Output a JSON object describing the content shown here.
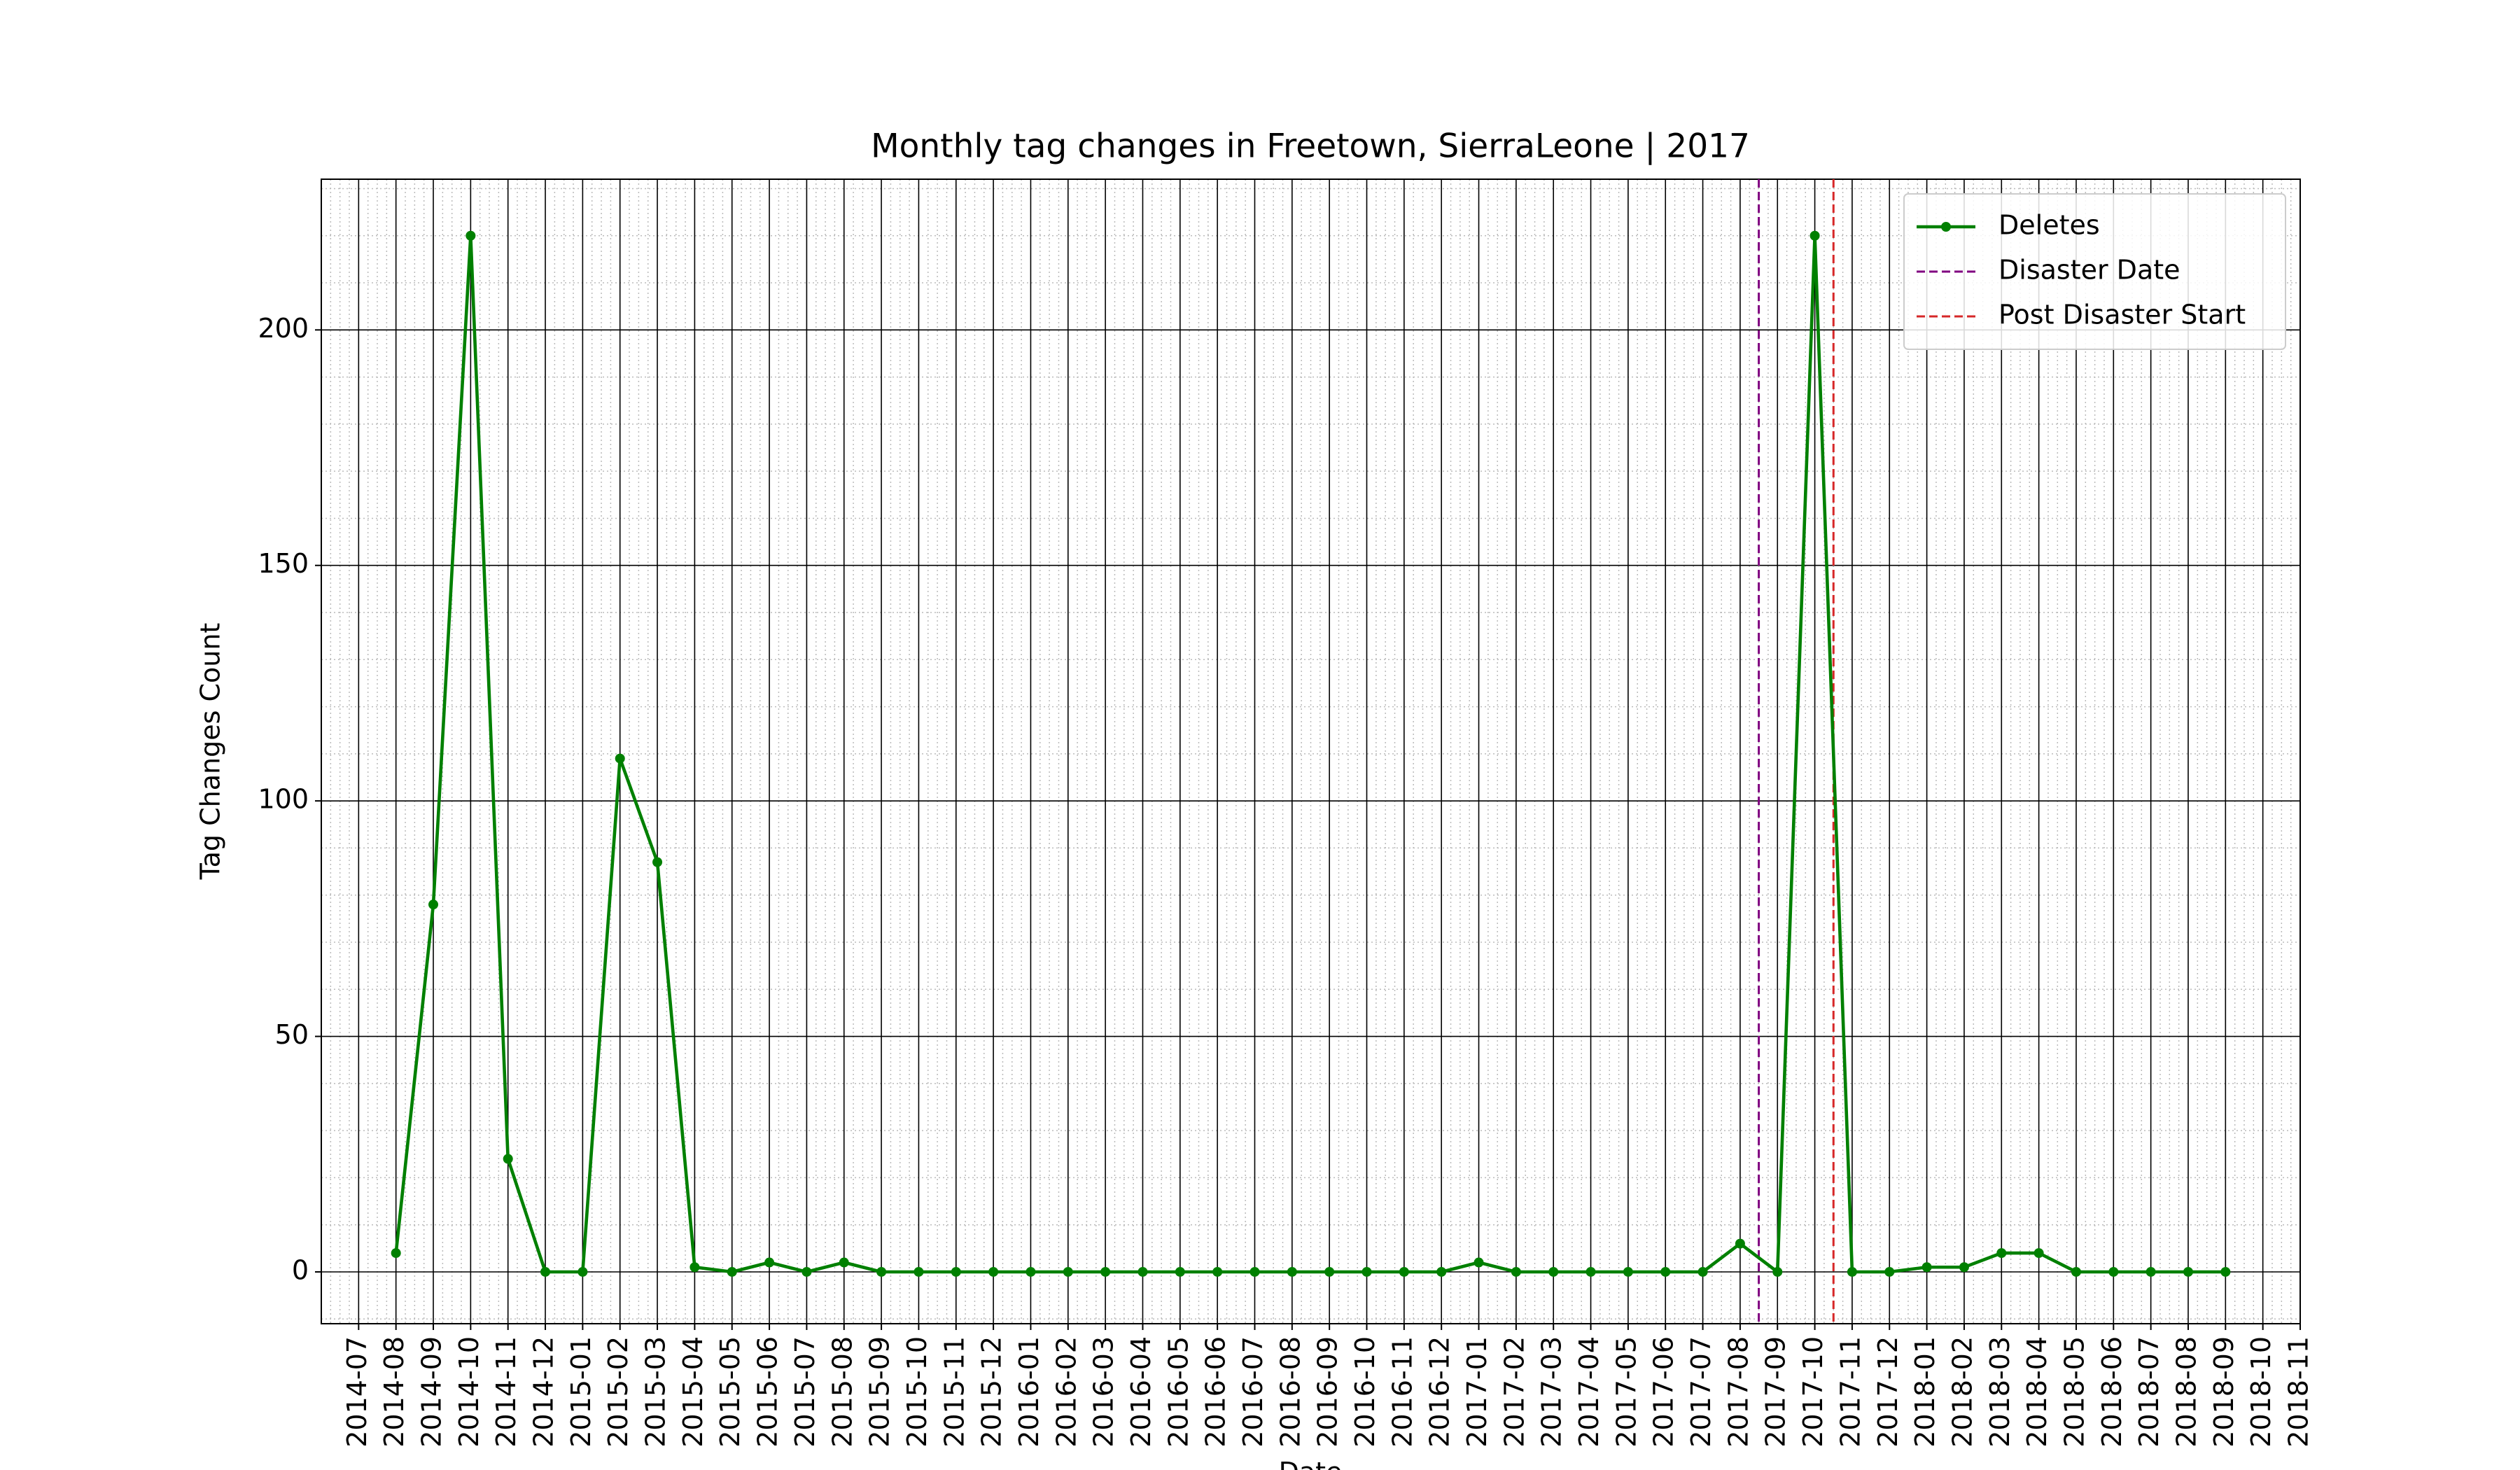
{
  "chart_data": {
    "type": "line",
    "title": "Monthly tag changes in Freetown, SierraLeone | 2017",
    "x_label": "Date",
    "y_label": "Tag Changes Count",
    "x": [
      "2014-08",
      "2014-09",
      "2014-10",
      "2014-11",
      "2014-12",
      "2015-01",
      "2015-02",
      "2015-03",
      "2015-04",
      "2015-05",
      "2015-06",
      "2015-07",
      "2015-08",
      "2015-09",
      "2015-10",
      "2015-11",
      "2015-12",
      "2016-01",
      "2016-02",
      "2016-03",
      "2016-04",
      "2016-05",
      "2016-06",
      "2016-07",
      "2016-08",
      "2016-09",
      "2016-10",
      "2016-11",
      "2016-12",
      "2017-01",
      "2017-02",
      "2017-03",
      "2017-04",
      "2017-05",
      "2017-06",
      "2017-07",
      "2017-08",
      "2017-09",
      "2017-10",
      "2017-11",
      "2017-12",
      "2018-01",
      "2018-02",
      "2018-03",
      "2018-04",
      "2018-05",
      "2018-06",
      "2018-07",
      "2018-08",
      "2018-09"
    ],
    "series": [
      {
        "name": "Deletes",
        "color": "#008000",
        "values": [
          4,
          78,
          220,
          24,
          0,
          0,
          109,
          87,
          1,
          0,
          2,
          0,
          2,
          0,
          0,
          0,
          0,
          0,
          0,
          0,
          0,
          0,
          0,
          0,
          0,
          0,
          0,
          0,
          0,
          2,
          0,
          0,
          0,
          0,
          0,
          0,
          6,
          0,
          220,
          0,
          0,
          1,
          1,
          4,
          4,
          0,
          0,
          0,
          0,
          0
        ]
      }
    ],
    "vlines": [
      {
        "name": "Disaster Date",
        "color": "#800080",
        "x": "2017-08"
      },
      {
        "name": "Post Disaster Start",
        "color": "#d62728",
        "x": "2017-10"
      }
    ],
    "xlim": [
      "2014-06",
      "2018-11"
    ],
    "xticks": [
      "2014-07",
      "2014-08",
      "2014-09",
      "2014-10",
      "2014-11",
      "2014-12",
      "2015-01",
      "2015-02",
      "2015-03",
      "2015-04",
      "2015-05",
      "2015-06",
      "2015-07",
      "2015-08",
      "2015-09",
      "2015-10",
      "2015-11",
      "2015-12",
      "2016-01",
      "2016-02",
      "2016-03",
      "2016-04",
      "2016-05",
      "2016-06",
      "2016-07",
      "2016-08",
      "2016-09",
      "2016-10",
      "2016-11",
      "2016-12",
      "2017-01",
      "2017-02",
      "2017-03",
      "2017-04",
      "2017-05",
      "2017-06",
      "2017-07",
      "2017-08",
      "2017-09",
      "2017-10",
      "2017-11",
      "2017-12",
      "2018-01",
      "2018-02",
      "2018-03",
      "2018-04",
      "2018-05",
      "2018-06",
      "2018-07",
      "2018-08",
      "2018-09",
      "2018-10",
      "2018-11"
    ],
    "ylim": [
      -11,
      232
    ],
    "yticks": [
      0,
      50,
      100,
      150,
      200
    ],
    "grid": true,
    "legend": "upper right"
  }
}
